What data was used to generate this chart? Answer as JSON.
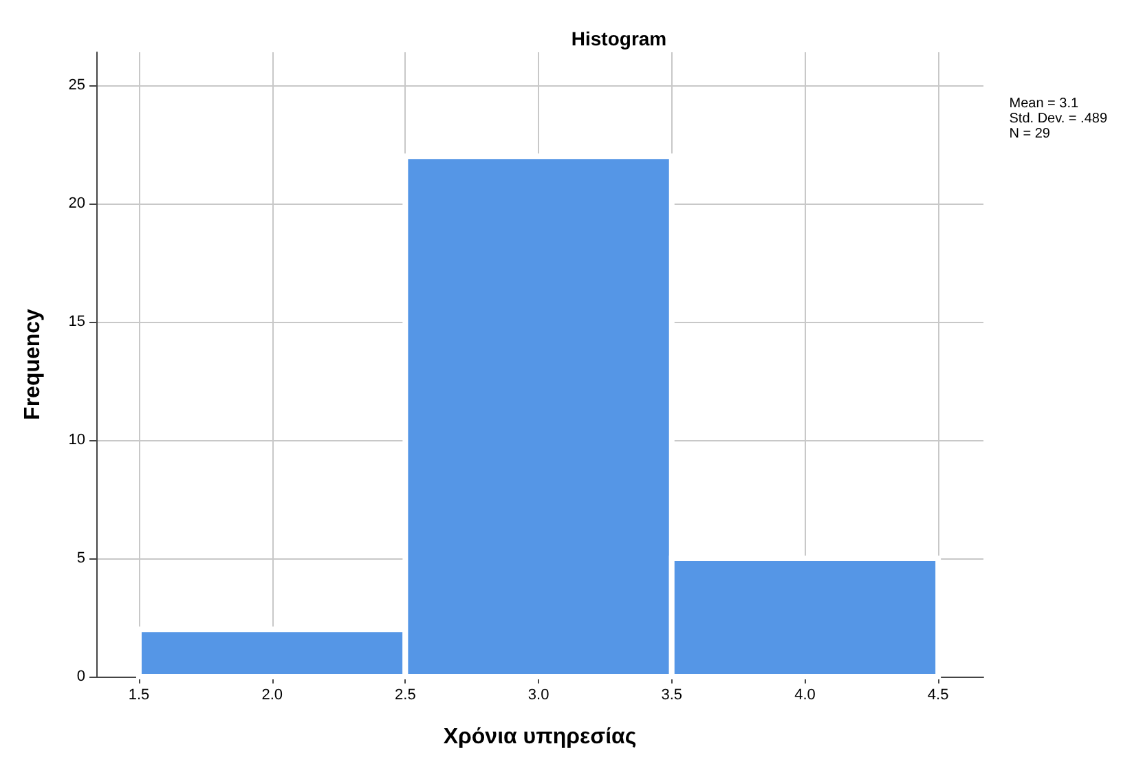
{
  "chart_data": {
    "type": "histogram",
    "title": "Histogram",
    "xlabel": "Χρόνια υπηρεσίας",
    "ylabel": "Frequency",
    "bins": [
      1.5,
      2.5,
      3.5,
      4.5
    ],
    "values": [
      2,
      22,
      5
    ],
    "color": "#5596e6",
    "xlim": [
      1.34,
      4.67
    ],
    "ylim": [
      0,
      26.4
    ],
    "xticks": [
      {
        "value": 1.5,
        "label": "1.5"
      },
      {
        "value": 2,
        "label": "2.0"
      },
      {
        "value": 2.5,
        "label": "2.5"
      },
      {
        "value": 3,
        "label": "3.0"
      },
      {
        "value": 3.5,
        "label": "3.5"
      },
      {
        "value": 4,
        "label": "4.0"
      },
      {
        "value": 4.5,
        "label": "4.5"
      }
    ],
    "yticks": [
      0,
      5,
      10,
      15,
      20,
      25
    ],
    "grid": true,
    "annotations": [
      "Mean = 3.1\nStd. Dev. = .489\nN = 29"
    ]
  }
}
